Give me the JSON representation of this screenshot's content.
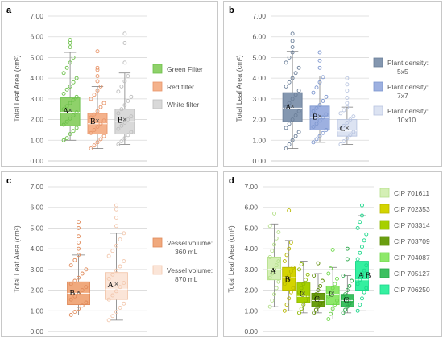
{
  "chart_data": [
    {
      "panel": "a",
      "type": "box",
      "ylabel": "Total Leaf Area (cm²)",
      "ylim": [
        0,
        7
      ],
      "yticks": [
        "0.00",
        "1.00",
        "2.00",
        "3.00",
        "4.00",
        "5.00",
        "6.00",
        "7.00"
      ],
      "grid": true,
      "legend_position": "right",
      "series": [
        {
          "name": "Green Filter",
          "color": "#6cc04a",
          "fill": "#8fd16a",
          "min": 1.0,
          "q1": 1.7,
          "median": 2.35,
          "q3": 3.05,
          "max": 5.25,
          "mean": 2.45,
          "letter": "A",
          "outliers": [
            5.5,
            5.7,
            5.85
          ],
          "scatter": [
            1.0,
            1.1,
            1.3,
            1.45,
            1.6,
            1.75,
            1.9,
            2.05,
            2.2,
            2.35,
            2.5,
            2.65,
            2.8,
            2.95,
            3.1,
            3.25,
            3.45,
            3.6,
            3.8,
            4.0,
            4.25,
            4.5,
            4.75,
            5.0
          ]
        },
        {
          "name": "Red filter",
          "color": "#e8956a",
          "fill": "#f4b28c",
          "min": 0.6,
          "q1": 1.3,
          "median": 1.8,
          "q3": 2.3,
          "max": 3.6,
          "mean": 1.95,
          "letter": "B",
          "outliers": [
            3.85,
            4.1,
            4.4,
            4.5,
            5.3
          ],
          "scatter": [
            0.6,
            0.75,
            0.9,
            1.05,
            1.2,
            1.35,
            1.5,
            1.65,
            1.8,
            1.95,
            2.1,
            2.25,
            2.4,
            2.6,
            2.8,
            3.0,
            3.2,
            3.4,
            3.6
          ]
        },
        {
          "name": "White filter",
          "color": "#bdbdbd",
          "fill": "#d9d9d9",
          "min": 0.8,
          "q1": 1.3,
          "median": 1.9,
          "q3": 2.5,
          "max": 4.25,
          "mean": 2.0,
          "letter": "B",
          "outliers": [
            4.75,
            5.7,
            6.15
          ],
          "scatter": [
            0.8,
            0.95,
            1.1,
            1.25,
            1.4,
            1.55,
            1.7,
            1.85,
            2.0,
            2.15,
            2.3,
            2.5,
            2.7,
            2.9,
            3.1,
            3.35,
            3.6,
            3.85,
            4.1
          ]
        }
      ]
    },
    {
      "panel": "b",
      "type": "box",
      "ylabel": "Total Leaf Area (cm²)",
      "ylim": [
        0,
        7
      ],
      "yticks": [
        "0.00",
        "1.00",
        "2.00",
        "3.00",
        "4.00",
        "5.00",
        "6.00",
        "7.00"
      ],
      "grid": true,
      "legend_position": "right",
      "series": [
        {
          "name": "Plant density: 5x5",
          "color": "#6b7f99",
          "fill": "#8497b0",
          "min": 0.6,
          "q1": 1.9,
          "median": 2.55,
          "q3": 3.3,
          "max": 5.3,
          "mean": 2.65,
          "letter": "A",
          "outliers": [
            5.5,
            5.8,
            6.15
          ],
          "scatter": [
            0.6,
            0.8,
            1.0,
            1.2,
            1.4,
            1.6,
            1.8,
            2.0,
            2.2,
            2.4,
            2.6,
            2.8,
            3.0,
            3.2,
            3.4,
            3.6,
            3.8,
            4.0,
            4.25,
            4.5,
            4.75,
            5.0,
            5.25
          ]
        },
        {
          "name": "Plant density: 7x7",
          "color": "#7e97cf",
          "fill": "#9db0e0",
          "min": 0.9,
          "q1": 1.5,
          "median": 2.1,
          "q3": 2.65,
          "max": 4.1,
          "mean": 2.15,
          "letter": "B",
          "outliers": [
            4.5,
            4.85,
            5.25
          ],
          "scatter": [
            0.9,
            1.05,
            1.2,
            1.35,
            1.5,
            1.65,
            1.8,
            1.95,
            2.1,
            2.25,
            2.4,
            2.55,
            2.7,
            2.9,
            3.1,
            3.3,
            3.55,
            3.8,
            4.05
          ]
        },
        {
          "name": "Plant density: 10x10",
          "color": "#b8c4e0",
          "fill": "#dce3f2",
          "min": 0.8,
          "q1": 1.2,
          "median": 1.45,
          "q3": 2.0,
          "max": 2.6,
          "mean": 1.6,
          "letter": "C",
          "outliers": [
            2.8,
            3.05,
            3.4,
            3.7,
            4.0
          ],
          "scatter": [
            0.8,
            0.95,
            1.1,
            1.25,
            1.4,
            1.55,
            1.7,
            1.85,
            2.0,
            2.15,
            2.3,
            2.45,
            2.6
          ]
        }
      ]
    },
    {
      "panel": "c",
      "type": "box",
      "ylabel": "Total Leaf Area (cm²)",
      "ylim": [
        0,
        7
      ],
      "yticks": [
        "0.00",
        "1.00",
        "2.00",
        "3.00",
        "4.00",
        "5.00",
        "6.00",
        "7.00"
      ],
      "grid": true,
      "legend_position": "right",
      "series": [
        {
          "name": "Vessel volume: 360 mL",
          "color": "#e08a5a",
          "fill": "#f0a97d",
          "min": 0.8,
          "q1": 1.3,
          "median": 1.85,
          "q3": 2.4,
          "max": 3.7,
          "mean": 1.9,
          "letter": "B",
          "outliers": [
            4.0,
            4.3,
            4.6,
            5.0,
            5.3
          ],
          "scatter": [
            0.8,
            0.95,
            1.1,
            1.25,
            1.4,
            1.55,
            1.7,
            1.85,
            2.0,
            2.15,
            2.3,
            2.45,
            2.6,
            2.8,
            3.0,
            3.2,
            3.45,
            3.7
          ]
        },
        {
          "name": "Vessel volume: 870 mL",
          "color": "#f2c7ad",
          "fill": "#fbe5d8",
          "min": 0.55,
          "q1": 1.55,
          "median": 2.05,
          "q3": 2.85,
          "max": 4.75,
          "mean": 2.3,
          "letter": "A",
          "outliers": [
            5.1,
            5.5,
            5.9,
            6.1
          ],
          "scatter": [
            0.55,
            0.75,
            0.95,
            1.15,
            1.35,
            1.55,
            1.75,
            1.95,
            2.15,
            2.35,
            2.55,
            2.75,
            2.95,
            3.15,
            3.4,
            3.65,
            3.9,
            4.15,
            4.45,
            4.75
          ]
        }
      ]
    },
    {
      "panel": "d",
      "type": "box",
      "ylabel": "Total Leaf Area (cm²)",
      "ylim": [
        0,
        7
      ],
      "yticks": [
        "0.00",
        "1.00",
        "2.00",
        "3.00",
        "4.00",
        "5.00",
        "6.00",
        "7.00"
      ],
      "grid": true,
      "legend_position": "right",
      "series": [
        {
          "name": "CIP 701611",
          "color": "#b5e08a",
          "fill": "#d4efb5",
          "min": 1.2,
          "q1": 2.5,
          "median": 3.0,
          "q3": 3.6,
          "max": 5.2,
          "mean": 2.95,
          "letter": "A",
          "outliers": [
            5.7
          ],
          "scatter": [
            1.2,
            1.5,
            1.8,
            2.1,
            2.4,
            2.6,
            2.8,
            3.0,
            3.2,
            3.4,
            3.6,
            3.9,
            4.2,
            4.5,
            4.8,
            5.1
          ]
        },
        {
          "name": "CIP 702353",
          "color": "#b8b800",
          "fill": "#d4d400",
          "min": 1.0,
          "q1": 2.0,
          "median": 2.6,
          "q3": 3.1,
          "max": 4.4,
          "mean": 2.55,
          "letter": "B",
          "outliers": [
            5.85
          ],
          "scatter": [
            1.0,
            1.3,
            1.6,
            1.9,
            2.1,
            2.3,
            2.5,
            2.7,
            2.9,
            3.1,
            3.4,
            3.7,
            4.0,
            4.3
          ]
        },
        {
          "name": "CIP 703314",
          "color": "#8db800",
          "fill": "#a6d000",
          "min": 0.9,
          "q1": 1.4,
          "median": 1.7,
          "q3": 2.35,
          "max": 3.4,
          "mean": 1.85,
          "letter": "C",
          "outliers": [],
          "scatter": [
            0.9,
            1.1,
            1.3,
            1.5,
            1.7,
            1.9,
            2.1,
            2.3,
            2.5,
            2.75,
            3.0,
            3.25
          ]
        },
        {
          "name": "CIP 703709",
          "color": "#5a8a00",
          "fill": "#6a9e10",
          "min": 0.9,
          "q1": 1.2,
          "median": 1.5,
          "q3": 1.85,
          "max": 2.8,
          "mean": 1.6,
          "letter": "C",
          "outliers": [
            3.3
          ],
          "scatter": [
            0.9,
            1.05,
            1.2,
            1.35,
            1.5,
            1.65,
            1.8,
            2.0,
            2.2,
            2.45,
            2.7
          ]
        },
        {
          "name": "CIP 704087",
          "color": "#6fd84a",
          "fill": "#8ee86a",
          "min": 0.6,
          "q1": 1.3,
          "median": 1.8,
          "q3": 2.2,
          "max": 3.1,
          "mean": 1.85,
          "letter": "C",
          "outliers": [
            3.95
          ],
          "scatter": [
            0.6,
            0.85,
            1.1,
            1.3,
            1.5,
            1.7,
            1.9,
            2.1,
            2.3,
            2.55,
            2.8,
            3.05
          ]
        },
        {
          "name": "CIP 705127",
          "color": "#2aa84a",
          "fill": "#3cc060",
          "min": 0.9,
          "q1": 1.2,
          "median": 1.5,
          "q3": 1.8,
          "max": 2.7,
          "mean": 1.55,
          "letter": "C",
          "outliers": [
            3.5,
            4.0
          ],
          "scatter": [
            0.9,
            1.05,
            1.2,
            1.35,
            1.5,
            1.65,
            1.8,
            2.0,
            2.2,
            2.45,
            2.7
          ]
        },
        {
          "name": "CIP 706250",
          "color": "#1ad88a",
          "fill": "#35f0a0",
          "min": 1.0,
          "q1": 2.0,
          "median": 2.5,
          "q3": 3.4,
          "max": 5.6,
          "mean": 2.75,
          "letter": "A B",
          "outliers": [
            6.1
          ],
          "scatter": [
            1.0,
            1.3,
            1.6,
            1.9,
            2.1,
            2.3,
            2.5,
            2.7,
            2.95,
            3.2,
            3.5,
            3.8,
            4.1,
            4.4,
            4.7,
            5.0,
            5.3,
            5.6
          ]
        }
      ]
    }
  ]
}
